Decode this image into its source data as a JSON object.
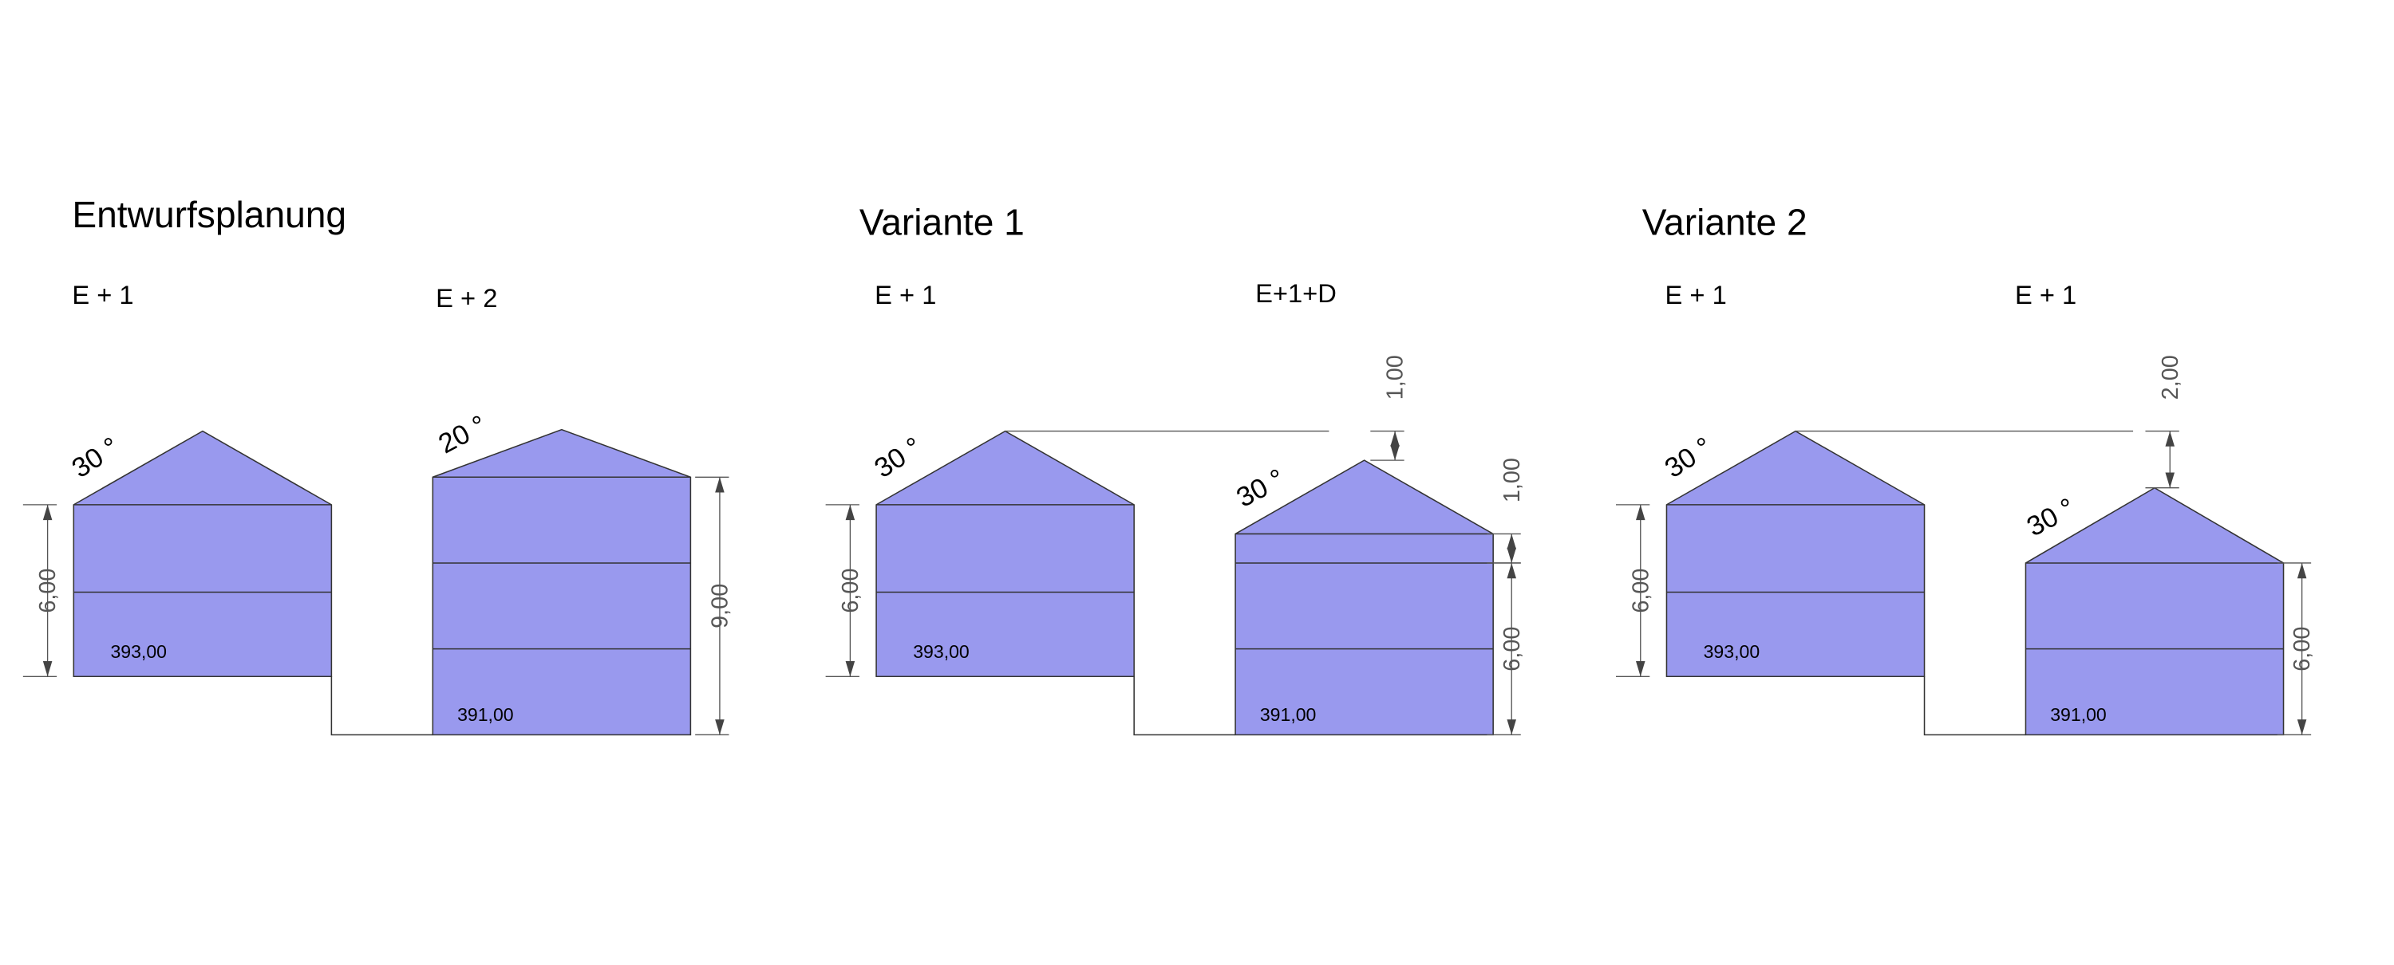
{
  "panels": [
    {
      "title": "Entwurfsplanung",
      "buildings": [
        {
          "label": "E + 1",
          "angle": "30 °",
          "height": "6,00",
          "elevation": "393,00"
        },
        {
          "label": "E + 2",
          "angle": "20 °",
          "height": "9,00",
          "elevation": "391,00"
        }
      ]
    },
    {
      "title": "Variante 1",
      "buildings": [
        {
          "label": "E + 1",
          "angle": "30 °",
          "height": "6,00",
          "elevation": "393,00"
        },
        {
          "label": "E+1+D",
          "angle": "30 °",
          "height": "6,00",
          "elevation": "391,00",
          "offsets": [
            "1,00",
            "1,00"
          ]
        }
      ]
    },
    {
      "title": "Variante 2",
      "buildings": [
        {
          "label": "E + 1",
          "angle": "30 °",
          "height": "6,00",
          "elevation": "393,00"
        },
        {
          "label": "E + 1",
          "angle": "30 °",
          "height": "6,00",
          "elevation": "391,00",
          "offsets": [
            "2,00"
          ]
        }
      ]
    }
  ]
}
